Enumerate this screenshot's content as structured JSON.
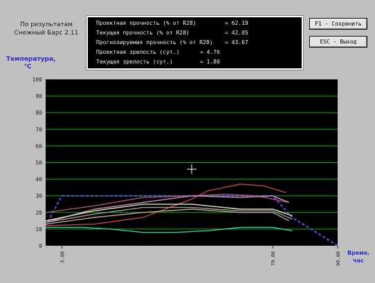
{
  "source_label": [
    "По результатам",
    "Снежный Барс 2.11"
  ],
  "info_panel": {
    "rows": [
      {
        "label": "Проектная прочность (% от R28)",
        "value": "= 62.19"
      },
      {
        "label": "Текущая прочность (% от R28)",
        "value": "= 42.05"
      },
      {
        "label": "Прогнозируемая прочность (% от R28)",
        "value": "= 43.67"
      },
      {
        "label": "Проектная зрелость (сут.)",
        "value": "= 4.76"
      },
      {
        "label": "Текущая зрелость (сут.)",
        "value": "= 1.80"
      }
    ]
  },
  "buttons": {
    "save": "F1 - Сохранить",
    "exit": "ESC - Выход"
  },
  "chart_data": {
    "type": "line",
    "ylabel": [
      "Температура,",
      "°C"
    ],
    "xlabel": [
      "Время,",
      "час"
    ],
    "ylim": [
      0,
      100
    ],
    "yticks": [
      "0",
      "10",
      "20",
      "30",
      "40",
      "50",
      "60",
      "70",
      "80",
      "90",
      "100"
    ],
    "xticks": [
      {
        "value": 5,
        "label": "5.00"
      },
      {
        "value": 70,
        "label": "70.00"
      },
      {
        "value": 90,
        "label": "90.00"
      }
    ],
    "xlim": [
      0,
      90
    ],
    "grid": true,
    "plot_background": "#000000",
    "grid_color": "#00b400",
    "crosshair": {
      "x": 45,
      "y": 46
    },
    "series": [
      {
        "color": "#5555ff",
        "dashed": true,
        "points": [
          [
            0,
            12
          ],
          [
            5,
            30
          ],
          [
            70,
            30
          ],
          [
            76,
            17
          ],
          [
            90,
            0
          ]
        ]
      },
      {
        "color": "#c04a4a",
        "dashed": false,
        "points": [
          [
            0,
            12
          ],
          [
            15,
            13
          ],
          [
            30,
            17
          ],
          [
            45,
            28
          ],
          [
            50,
            33
          ],
          [
            60,
            37
          ],
          [
            67,
            36
          ],
          [
            74,
            32
          ]
        ]
      },
      {
        "color": "#b0507a",
        "dashed": false,
        "points": [
          [
            0,
            20
          ],
          [
            15,
            24
          ],
          [
            30,
            29
          ],
          [
            45,
            30
          ],
          [
            55,
            31
          ],
          [
            65,
            30
          ],
          [
            75,
            26
          ]
        ]
      },
      {
        "color": "#c890c8",
        "dashed": false,
        "points": [
          [
            0,
            14
          ],
          [
            15,
            22
          ],
          [
            30,
            26
          ],
          [
            45,
            30
          ],
          [
            60,
            29
          ],
          [
            70,
            30
          ],
          [
            75,
            26
          ]
        ]
      },
      {
        "color": "#e6e6b8",
        "dashed": false,
        "points": [
          [
            0,
            15
          ],
          [
            15,
            21
          ],
          [
            30,
            25
          ],
          [
            45,
            25
          ],
          [
            60,
            22
          ],
          [
            70,
            22
          ],
          [
            76,
            18
          ]
        ]
      },
      {
        "color": "#a0a0a0",
        "dashed": false,
        "points": [
          [
            0,
            14
          ],
          [
            15,
            19
          ],
          [
            30,
            23
          ],
          [
            45,
            23
          ],
          [
            60,
            21
          ],
          [
            70,
            21
          ],
          [
            76,
            16
          ]
        ]
      },
      {
        "color": "#c8a0a0",
        "dashed": false,
        "points": [
          [
            0,
            13
          ],
          [
            15,
            17
          ],
          [
            30,
            20
          ],
          [
            45,
            22
          ],
          [
            60,
            20
          ],
          [
            70,
            20
          ],
          [
            75,
            15
          ]
        ]
      },
      {
        "color": "#40c8a0",
        "dashed": false,
        "points": [
          [
            0,
            11
          ],
          [
            12,
            11
          ],
          [
            20,
            10
          ],
          [
            30,
            8
          ],
          [
            40,
            8
          ],
          [
            50,
            9
          ],
          [
            60,
            11
          ],
          [
            70,
            11
          ],
          [
            76,
            9
          ]
        ]
      }
    ]
  }
}
